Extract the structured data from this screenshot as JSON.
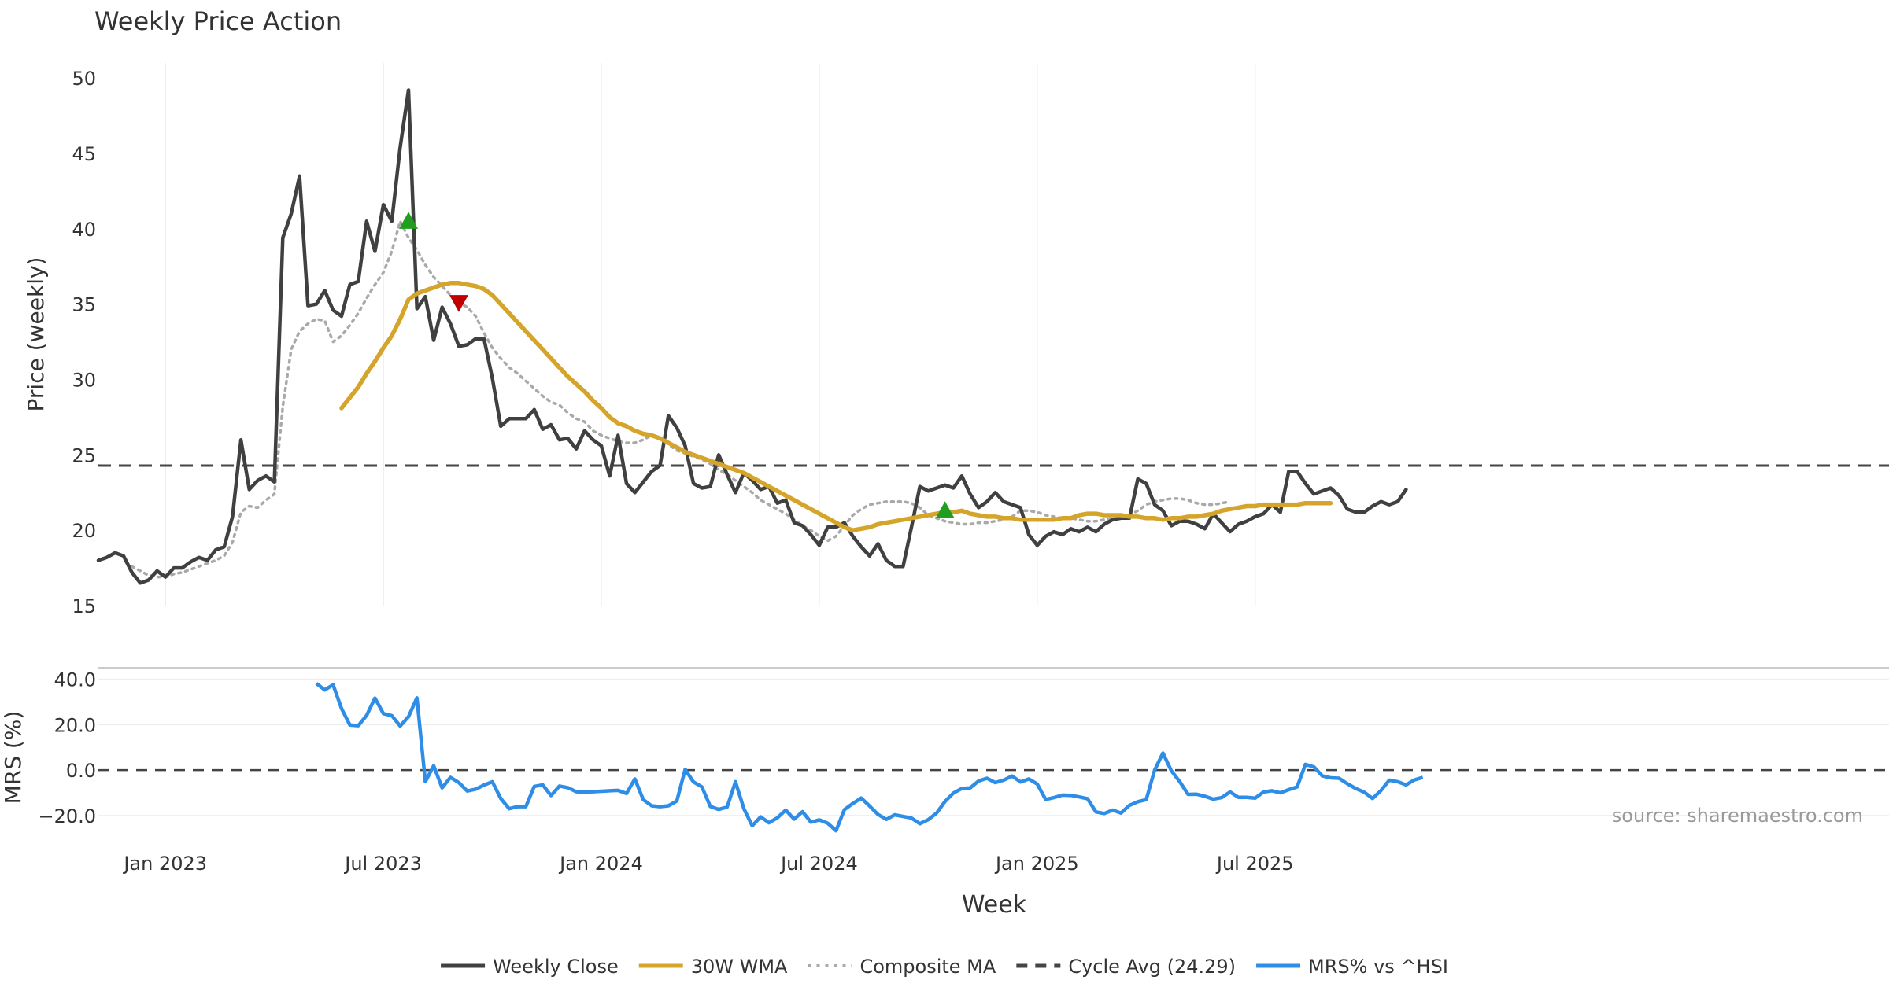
{
  "chart_data": {
    "type": "line",
    "title": "Weekly Price Action",
    "price_panel": {
      "ylabel": "Price (weekly)",
      "ylim": [
        15,
        51
      ],
      "yticks": [
        15,
        20,
        25,
        30,
        35,
        40,
        45,
        50
      ],
      "cycle_avg": 24.29,
      "series": [
        {
          "name": "Weekly Close",
          "color": "#404040",
          "style": "solid",
          "values": [
            18.0,
            18.2,
            18.5,
            18.3,
            17.2,
            16.5,
            16.7,
            17.3,
            16.9,
            17.5,
            17.5,
            17.9,
            18.2,
            18.0,
            18.7,
            18.9,
            20.9,
            26.0,
            22.7,
            23.3,
            23.6,
            23.2,
            39.4,
            41.0,
            43.5,
            34.9,
            35.0,
            35.9,
            34.6,
            34.2,
            36.3,
            36.5,
            40.5,
            38.5,
            41.6,
            40.5,
            45.4,
            49.2,
            34.7,
            35.5,
            32.6,
            34.8,
            33.7,
            32.2,
            32.3,
            32.7,
            32.7,
            30.1,
            26.9,
            27.4,
            27.4,
            27.4,
            28.0,
            26.7,
            27.0,
            26.0,
            26.1,
            25.4,
            26.6,
            26.0,
            25.6,
            23.6,
            26.3,
            23.1,
            22.5,
            23.2,
            23.9,
            24.3,
            27.6,
            26.8,
            25.6,
            23.1,
            22.8,
            22.9,
            25.0,
            23.7,
            22.5,
            23.8,
            23.3,
            22.7,
            22.9,
            21.8,
            22.0,
            20.5,
            20.3,
            19.7,
            19.0,
            20.2,
            20.2,
            20.5,
            19.6,
            18.9,
            18.3,
            19.1,
            18.0,
            17.6,
            17.6,
            20.2,
            22.9,
            22.6,
            22.8,
            23.0,
            22.8,
            23.6,
            22.4,
            21.5,
            21.9,
            22.5,
            21.9,
            21.7,
            21.5,
            19.7,
            19.0,
            19.6,
            19.9,
            19.7,
            20.1,
            19.9,
            20.2,
            19.9,
            20.4,
            20.7,
            20.8,
            20.8,
            23.4,
            23.1,
            21.7,
            21.3,
            20.3,
            20.6,
            20.6,
            20.4,
            20.1,
            21.1,
            20.5,
            19.9,
            20.4,
            20.6,
            20.9,
            21.1,
            21.7,
            21.2,
            23.9,
            23.9,
            23.1,
            22.4,
            22.6,
            22.8,
            22.3,
            21.4,
            21.2,
            21.2,
            21.6,
            21.9,
            21.7,
            21.9,
            22.7
          ]
        },
        {
          "name": "30W WMA",
          "color": "#D4A52A",
          "style": "solid",
          "start_index": 29,
          "values": [
            28.1,
            28.8,
            29.5,
            30.4,
            31.2,
            32.1,
            32.9,
            34.0,
            35.3,
            35.7,
            35.9,
            36.1,
            36.3,
            36.4,
            36.4,
            36.3,
            36.2,
            36.0,
            35.6,
            35.0,
            34.4,
            33.8,
            33.2,
            32.6,
            32.0,
            31.4,
            30.8,
            30.2,
            29.7,
            29.2,
            28.6,
            28.1,
            27.5,
            27.1,
            26.9,
            26.6,
            26.4,
            26.3,
            26.1,
            25.8,
            25.5,
            25.2,
            25.0,
            24.8,
            24.6,
            24.4,
            24.2,
            24.0,
            23.8,
            23.5,
            23.2,
            22.9,
            22.6,
            22.3,
            22.0,
            21.7,
            21.4,
            21.1,
            20.8,
            20.5,
            20.2,
            20.0,
            20.1,
            20.2,
            20.4,
            20.5,
            20.6,
            20.7,
            20.8,
            20.9,
            21.0,
            21.1,
            21.2,
            21.2,
            21.3,
            21.1,
            21.0,
            20.9,
            20.9,
            20.8,
            20.8,
            20.7,
            20.7,
            20.7,
            20.7,
            20.7,
            20.8,
            20.8,
            21.0,
            21.1,
            21.1,
            21.0,
            21.0,
            21.0,
            20.9,
            20.9,
            20.8,
            20.8,
            20.7,
            20.8,
            20.8,
            20.9,
            20.9,
            21.0,
            21.1,
            21.3,
            21.4,
            21.5,
            21.6,
            21.6,
            21.7,
            21.7,
            21.7,
            21.7,
            21.7,
            21.8,
            21.8,
            21.8,
            21.8
          ]
        },
        {
          "name": "Composite MA",
          "color": "#A9A9A9",
          "style": "dotted",
          "start_index": 4,
          "values": [
            17.6,
            17.3,
            17.0,
            16.9,
            16.9,
            17.1,
            17.2,
            17.4,
            17.6,
            17.8,
            18.0,
            18.3,
            19.2,
            21.2,
            21.6,
            21.5,
            22.0,
            22.4,
            28.2,
            32.0,
            33.2,
            33.7,
            34.0,
            33.9,
            32.5,
            32.9,
            33.6,
            34.4,
            35.4,
            36.3,
            37.1,
            38.5,
            40.5,
            39.4,
            38.6,
            37.6,
            36.8,
            36.2,
            35.6,
            35.1,
            34.8,
            34.2,
            33.1,
            32.1,
            31.4,
            30.8,
            30.4,
            29.9,
            29.4,
            28.9,
            28.5,
            28.3,
            27.8,
            27.4,
            27.2,
            26.6,
            26.3,
            26.1,
            25.9,
            25.8,
            25.8,
            26.0,
            26.3,
            26.1,
            25.7,
            25.3,
            25.1,
            24.9,
            24.7,
            24.4,
            24.0,
            23.7,
            23.3,
            22.9,
            22.5,
            22.0,
            21.7,
            21.4,
            21.1,
            20.7,
            20.3,
            20.0,
            19.6,
            19.3,
            19.6,
            20.3,
            21.0,
            21.4,
            21.7,
            21.8,
            21.9,
            21.9,
            21.9,
            21.8,
            21.5,
            21.0,
            20.8,
            20.6,
            20.5,
            20.4,
            20.4,
            20.5,
            20.5,
            20.6,
            20.7,
            20.9,
            21.3,
            21.3,
            21.2,
            21.0,
            20.9,
            20.8,
            20.8,
            20.7,
            20.6,
            20.6,
            20.7,
            20.8,
            20.9,
            21.0,
            21.3,
            21.7,
            21.9,
            22.0,
            22.1,
            22.1,
            22.0,
            21.8,
            21.7,
            21.7,
            21.8,
            21.9
          ]
        },
        {
          "name": "Cycle Avg (24.29)",
          "color": "#444444",
          "style": "dashed",
          "constant": 24.29
        }
      ],
      "markers": [
        {
          "type": "buy",
          "index": 37,
          "value": 40.5,
          "color": "#1f9e1f"
        },
        {
          "type": "sell",
          "index": 43,
          "value": 35.1,
          "color": "#c00000"
        },
        {
          "type": "buy",
          "index": 101,
          "value": 21.3,
          "color": "#1f9e1f"
        }
      ]
    },
    "mrs_panel": {
      "ylabel": "MRS (%)",
      "ylim": [
        -28,
        43
      ],
      "yticks": [
        -20.0,
        0.0,
        20.0,
        40.0
      ],
      "ytick_labels": [
        "−20.0",
        "0.0",
        "20.0",
        "40.0"
      ],
      "series": [
        {
          "name": "MRS% vs ^HSI",
          "color": "#2E8DE6",
          "start_index": 26,
          "values": [
            38.2,
            35.3,
            37.6,
            27.1,
            19.9,
            19.6,
            24.1,
            31.7,
            24.9,
            24.0,
            19.4,
            23.5,
            31.8,
            -5.1,
            1.9,
            -7.8,
            -3.2,
            -5.5,
            -9.2,
            -8.4,
            -6.6,
            -5.1,
            -12.5,
            -17.0,
            -16.1,
            -16.1,
            -7.2,
            -6.5,
            -11.2,
            -7.0,
            -7.7,
            -9.5,
            -9.6,
            -9.5,
            -9.3,
            -9.1,
            -8.9,
            -10.3,
            -3.9,
            -13.0,
            -15.7,
            -16.1,
            -15.7,
            -13.6,
            0.3,
            -5.2,
            -7.4,
            -16.0,
            -17.3,
            -16.3,
            -5.1,
            -17.0,
            -24.5,
            -20.6,
            -23.2,
            -21.0,
            -17.6,
            -21.6,
            -18.3,
            -22.9,
            -21.9,
            -23.4,
            -26.7,
            -17.4,
            -14.7,
            -12.3,
            -15.8,
            -19.5,
            -21.7,
            -19.7,
            -20.4,
            -21.1,
            -23.6,
            -21.8,
            -18.9,
            -13.8,
            -10.1,
            -8.1,
            -7.8,
            -4.8,
            -3.6,
            -5.5,
            -4.4,
            -2.6,
            -5.2,
            -3.9,
            -6.1,
            -12.9,
            -12.1,
            -11.0,
            -11.1,
            -11.8,
            -12.6,
            -18.4,
            -19.1,
            -17.6,
            -18.9,
            -15.5,
            -13.9,
            -13.0,
            -0.1,
            7.5,
            -0.3,
            -5.1,
            -10.7,
            -10.6,
            -11.5,
            -12.8,
            -12.1,
            -9.6,
            -12.0,
            -12.0,
            -12.3,
            -9.6,
            -9.1,
            -10.0,
            -8.6,
            -7.4,
            2.5,
            1.4,
            -2.5,
            -3.4,
            -3.6,
            -6.0,
            -8.1,
            -9.7,
            -12.5,
            -9.0,
            -4.4,
            -5.1,
            -6.5,
            -4.3,
            -3.2
          ]
        }
      ]
    },
    "xaxis": {
      "label": "Week",
      "ticks": [
        {
          "label": "Jan 2023",
          "index": 8
        },
        {
          "label": "Jul 2023",
          "index": 34
        },
        {
          "label": "Jan 2024",
          "index": 60
        },
        {
          "label": "Jul 2024",
          "index": 86
        },
        {
          "label": "Jan 2025",
          "index": 112
        },
        {
          "label": "Jul 2025",
          "index": 138
        }
      ]
    },
    "legend": {
      "position": "bottom-center",
      "entries": [
        {
          "label": "Weekly Close",
          "color": "#404040",
          "style": "solid"
        },
        {
          "label": "30W WMA",
          "color": "#D4A52A",
          "style": "solid"
        },
        {
          "label": "Composite MA",
          "color": "#A9A9A9",
          "style": "dotted"
        },
        {
          "label": "Cycle Avg (24.29)",
          "color": "#444444",
          "style": "dashed"
        },
        {
          "label": "MRS% vs ^HSI",
          "color": "#2E8DE6",
          "style": "solid"
        }
      ]
    },
    "annotation": "source: sharemaestro.com"
  }
}
